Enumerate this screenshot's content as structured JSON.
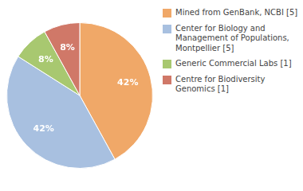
{
  "chart_data": {
    "type": "pie",
    "categories": [
      "Mined from GenBank, NCBI [5]",
      "Center for Biology and\nManagement of Populations,\nMontpellier [5]",
      "Generic Commercial Labs [1]",
      "Centre for Biodiversity\nGenomics [1]"
    ],
    "values": [
      42,
      42,
      8,
      8
    ],
    "value_labels": [
      "42%",
      "42%",
      "8%",
      "8%"
    ],
    "colors": [
      "#f0a868",
      "#a8c0e0",
      "#a8c870",
      "#d07868"
    ],
    "data_labels": true,
    "legend": "right"
  }
}
